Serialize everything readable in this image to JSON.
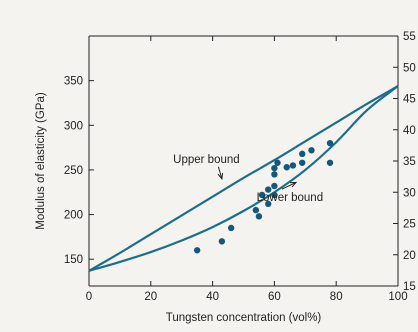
{
  "chart_data": {
    "type": "scatter",
    "xlabel": "Tungsten concentration (vol%)",
    "ylabel": "Modulus of elasticity (GPa)",
    "xlim": [
      0,
      100
    ],
    "ylim_left": [
      120,
      400
    ],
    "ylim_right": [
      15,
      55
    ],
    "x_ticks": [
      0,
      20,
      40,
      60,
      80,
      100
    ],
    "y_ticks_left": [
      150,
      200,
      250,
      300,
      350
    ],
    "y_ticks_right": [
      15,
      20,
      25,
      30,
      35,
      40,
      45,
      50,
      55
    ],
    "grid": false,
    "series": [
      {
        "name": "Upper bound",
        "kind": "line",
        "x": [
          0,
          10,
          20,
          30,
          40,
          50,
          60,
          70,
          80,
          90,
          100
        ],
        "y": [
          137,
          157,
          178,
          199,
          220,
          241,
          261,
          282,
          303,
          324,
          344
        ]
      },
      {
        "name": "Lower bound",
        "kind": "line",
        "x": [
          0,
          10,
          20,
          30,
          40,
          50,
          60,
          70,
          80,
          90,
          100
        ],
        "y": [
          137,
          147,
          158,
          171,
          186,
          204,
          225,
          250,
          281,
          317,
          344
        ]
      },
      {
        "name": "",
        "kind": "points",
        "x": [
          35,
          43,
          46,
          54,
          55,
          56,
          58,
          58,
          60,
          60,
          60,
          60,
          61,
          64,
          66,
          69,
          69,
          72,
          78,
          78
        ],
        "y": [
          160,
          170,
          185,
          205,
          198,
          222,
          212,
          228,
          222,
          232,
          245,
          252,
          258,
          253,
          255,
          258,
          268,
          272,
          280,
          258
        ]
      }
    ],
    "annotations": [
      {
        "text": "Upper bound",
        "x": 38,
        "y": 258,
        "arrow_to": [
          43,
          240
        ]
      },
      {
        "text": "Lower bound",
        "x": 65,
        "y": 215,
        "arrow_to": [
          67,
          236
        ]
      }
    ],
    "colors": {
      "curve": "#1b6f8c",
      "points": "#14587a",
      "axes": "#222222"
    }
  }
}
